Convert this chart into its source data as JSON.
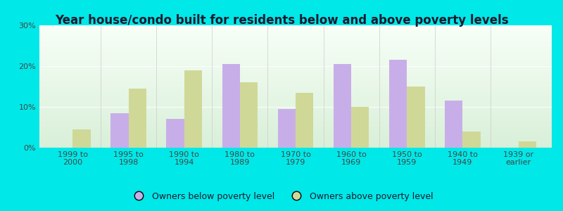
{
  "title": "Year house/condo built for residents below and above poverty levels",
  "categories": [
    "1999 to\n2000",
    "1995 to\n1998",
    "1990 to\n1994",
    "1980 to\n1989",
    "1970 to\n1979",
    "1960 to\n1969",
    "1950 to\n1959",
    "1940 to\n1949",
    "1939 or\nearlier"
  ],
  "below_poverty": [
    0,
    8.5,
    7.0,
    20.5,
    9.5,
    20.5,
    21.5,
    11.5,
    0
  ],
  "above_poverty": [
    4.5,
    14.5,
    19.0,
    16.0,
    13.5,
    10.0,
    15.0,
    4.0,
    1.5
  ],
  "below_color": "#c8aee8",
  "above_color": "#d0d898",
  "ylim": [
    0,
    30
  ],
  "yticks": [
    0,
    10,
    20,
    30
  ],
  "ytick_labels": [
    "0%",
    "10%",
    "20%",
    "30%"
  ],
  "legend_below": "Owners below poverty level",
  "legend_above": "Owners above poverty level",
  "title_fontsize": 12,
  "tick_fontsize": 8,
  "bar_width": 0.32,
  "outer_bg": "#00e8e8",
  "plot_bg_top": "#d8edd8",
  "plot_bg_bottom": "#f0faf0"
}
